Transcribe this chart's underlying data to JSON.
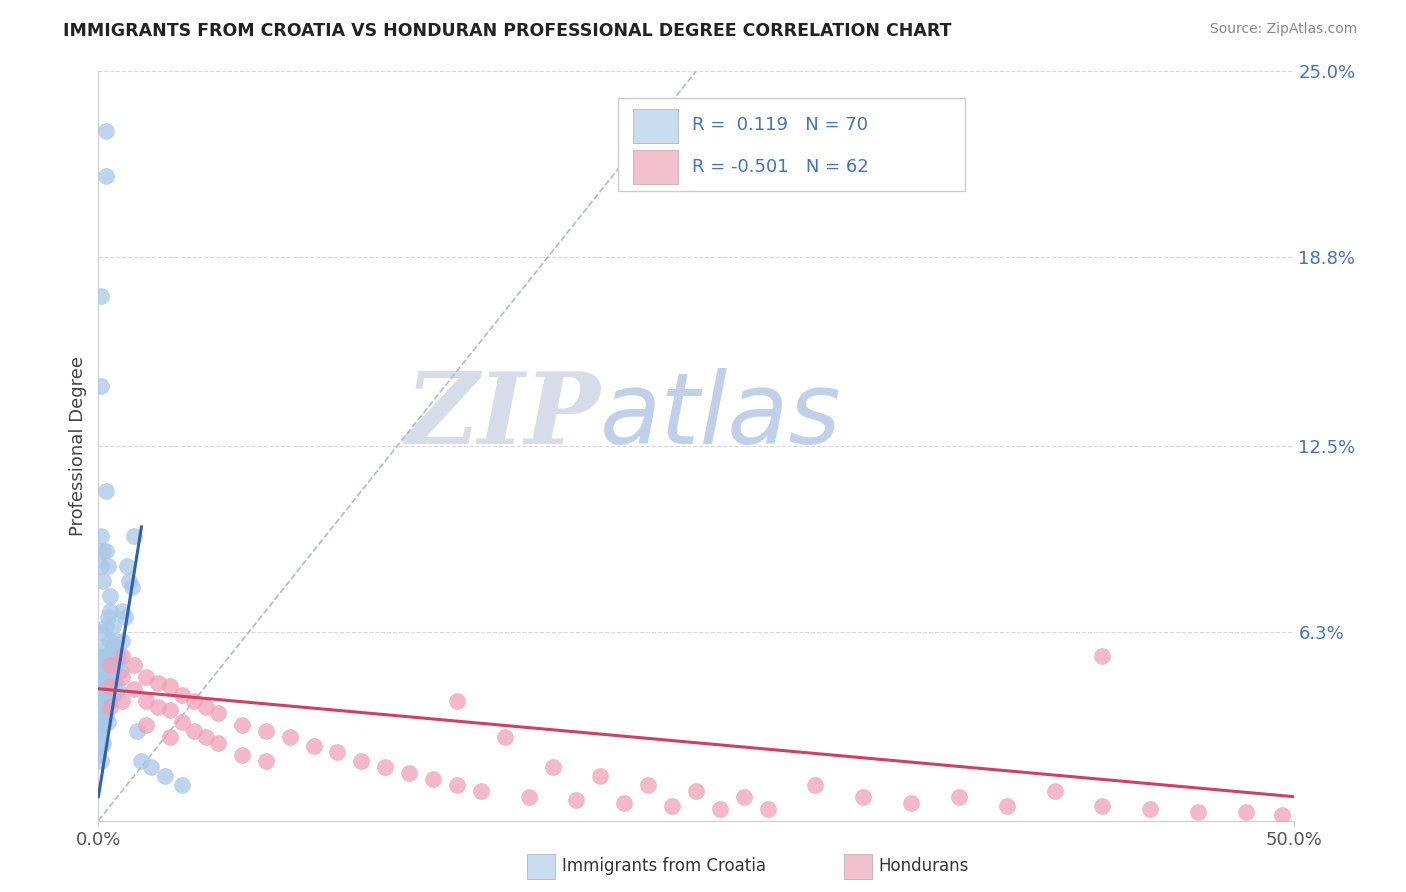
{
  "title": "IMMIGRANTS FROM CROATIA VS HONDURAN PROFESSIONAL DEGREE CORRELATION CHART",
  "source": "Source: ZipAtlas.com",
  "ylabel": "Professional Degree",
  "xlim": [
    0.0,
    0.5
  ],
  "ylim": [
    0.0,
    0.25
  ],
  "ytick_vals": [
    0.0,
    0.063,
    0.125,
    0.188,
    0.25
  ],
  "ytick_labels": [
    "",
    "6.3%",
    "12.5%",
    "18.8%",
    "25.0%"
  ],
  "xtick_vals": [
    0.0,
    0.5
  ],
  "xtick_labels": [
    "0.0%",
    "50.0%"
  ],
  "blue_scatter_color": "#a8c8e8",
  "blue_line_color": "#3060b0",
  "pink_scatter_color": "#f0a0b8",
  "pink_line_color": "#d04060",
  "diag_color": "#b0b8d0",
  "grid_color": "#d8d8d8",
  "watermark_zip_color": "#d8dce8",
  "watermark_atlas_color": "#c0d0e8",
  "legend_blue_fill": "#c8ddf0",
  "legend_pink_fill": "#f4c0d0",
  "legend_border": "#cccccc",
  "r_value_color": "#4472c4",
  "source_color": "#888888",
  "title_color": "#222222",
  "ylabel_color": "#444444",
  "tick_color": "#555555",
  "blue_line_x0": 0.0,
  "blue_line_x1": 0.018,
  "blue_line_y0": 0.008,
  "blue_line_y1": 0.098,
  "pink_line_x0": 0.0,
  "pink_line_x1": 0.5,
  "pink_line_y0": 0.044,
  "pink_line_y1": 0.008,
  "diag_line_x0": 0.0,
  "diag_line_x1": 0.25,
  "diag_line_y0": 0.0,
  "diag_line_y1": 0.25,
  "blue_x": [
    0.001,
    0.001,
    0.001,
    0.001,
    0.001,
    0.001,
    0.001,
    0.002,
    0.002,
    0.002,
    0.002,
    0.002,
    0.003,
    0.003,
    0.003,
    0.003,
    0.003,
    0.004,
    0.004,
    0.004,
    0.004,
    0.005,
    0.005,
    0.005,
    0.005,
    0.006,
    0.006,
    0.006,
    0.007,
    0.007,
    0.008,
    0.008,
    0.009,
    0.01,
    0.01,
    0.011,
    0.012,
    0.013,
    0.014,
    0.015,
    0.001,
    0.001,
    0.001,
    0.001,
    0.002,
    0.002,
    0.003,
    0.003,
    0.004,
    0.005,
    0.0,
    0.0,
    0.0,
    0.0,
    0.0,
    0.0,
    0.001,
    0.001,
    0.002,
    0.003,
    0.004,
    0.005,
    0.006,
    0.007,
    0.008,
    0.016,
    0.018,
    0.022,
    0.028,
    0.035
  ],
  "blue_y": [
    0.05,
    0.045,
    0.04,
    0.035,
    0.03,
    0.025,
    0.02,
    0.048,
    0.043,
    0.038,
    0.032,
    0.026,
    0.23,
    0.215,
    0.055,
    0.045,
    0.035,
    0.052,
    0.046,
    0.04,
    0.033,
    0.06,
    0.054,
    0.047,
    0.04,
    0.058,
    0.05,
    0.042,
    0.055,
    0.046,
    0.053,
    0.044,
    0.05,
    0.07,
    0.06,
    0.068,
    0.085,
    0.08,
    0.078,
    0.095,
    0.175,
    0.145,
    0.095,
    0.085,
    0.09,
    0.08,
    0.11,
    0.09,
    0.085,
    0.075,
    0.055,
    0.05,
    0.045,
    0.038,
    0.03,
    0.022,
    0.063,
    0.055,
    0.058,
    0.065,
    0.068,
    0.07,
    0.065,
    0.06,
    0.055,
    0.03,
    0.02,
    0.018,
    0.015,
    0.012
  ],
  "pink_x": [
    0.005,
    0.005,
    0.005,
    0.01,
    0.01,
    0.01,
    0.015,
    0.015,
    0.02,
    0.02,
    0.02,
    0.025,
    0.025,
    0.03,
    0.03,
    0.03,
    0.035,
    0.035,
    0.04,
    0.04,
    0.045,
    0.045,
    0.05,
    0.05,
    0.06,
    0.06,
    0.07,
    0.07,
    0.08,
    0.09,
    0.1,
    0.11,
    0.12,
    0.13,
    0.14,
    0.15,
    0.15,
    0.16,
    0.17,
    0.18,
    0.19,
    0.2,
    0.21,
    0.22,
    0.23,
    0.24,
    0.25,
    0.26,
    0.27,
    0.28,
    0.3,
    0.32,
    0.34,
    0.36,
    0.38,
    0.4,
    0.42,
    0.44,
    0.46,
    0.48,
    0.495,
    0.42
  ],
  "pink_y": [
    0.052,
    0.045,
    0.038,
    0.055,
    0.048,
    0.04,
    0.052,
    0.044,
    0.048,
    0.04,
    0.032,
    0.046,
    0.038,
    0.045,
    0.037,
    0.028,
    0.042,
    0.033,
    0.04,
    0.03,
    0.038,
    0.028,
    0.036,
    0.026,
    0.032,
    0.022,
    0.03,
    0.02,
    0.028,
    0.025,
    0.023,
    0.02,
    0.018,
    0.016,
    0.014,
    0.04,
    0.012,
    0.01,
    0.028,
    0.008,
    0.018,
    0.007,
    0.015,
    0.006,
    0.012,
    0.005,
    0.01,
    0.004,
    0.008,
    0.004,
    0.012,
    0.008,
    0.006,
    0.008,
    0.005,
    0.01,
    0.005,
    0.004,
    0.003,
    0.003,
    0.002,
    0.055
  ]
}
